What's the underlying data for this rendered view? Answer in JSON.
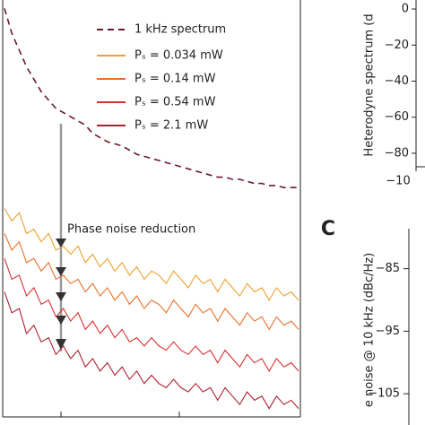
{
  "chart_data": [
    {
      "type": "line",
      "annotation": "Phase noise reduction",
      "xlim": [
        0,
        40
      ],
      "ylim": [
        0,
        100
      ],
      "x": [
        0,
        1,
        2,
        3,
        4,
        5,
        6,
        7,
        8,
        9,
        10,
        11,
        12,
        13,
        14,
        15,
        16,
        17,
        18,
        19,
        20,
        21,
        22,
        23,
        24,
        25,
        26,
        27,
        28,
        29,
        30,
        31,
        32,
        33,
        34,
        35,
        36,
        37,
        38,
        39,
        40
      ],
      "series": [
        {
          "name": "1 kHz spectrum",
          "color": "#6b1a2a",
          "linestyle": "dashed",
          "values": [
            98,
            92,
            88,
            84,
            81,
            78,
            76,
            74,
            73,
            72,
            71,
            70,
            68,
            67,
            66,
            65.5,
            65,
            64,
            63,
            62.5,
            62,
            61.5,
            61,
            60.5,
            60,
            59.5,
            59,
            58.5,
            58,
            57.5,
            57.5,
            57,
            57,
            56.5,
            56,
            56,
            55.5,
            55.5,
            55,
            55,
            55
          ]
        },
        {
          "name": "Pₛ = 0.034 mW",
          "color": "#f0a030",
          "linestyle": "solid",
          "values": [
            50,
            47,
            49,
            44,
            45,
            42,
            44,
            40,
            41,
            39,
            41,
            37,
            39,
            36,
            38,
            35,
            37,
            34,
            36,
            33,
            35,
            34,
            32,
            35,
            33,
            31,
            34,
            32,
            33,
            30,
            33,
            31,
            29,
            32,
            30,
            31,
            28,
            31,
            29,
            30,
            28
          ]
        },
        {
          "name": "Pₛ = 0.14 mW",
          "color": "#e8702a",
          "linestyle": "solid",
          "values": [
            44,
            40,
            42,
            37,
            38,
            35,
            37,
            33,
            34,
            32,
            33,
            30,
            32,
            29,
            31,
            28,
            30,
            27,
            29,
            26,
            28,
            27,
            25,
            28,
            26,
            24,
            27,
            25,
            26,
            23,
            26,
            24,
            22,
            25,
            23,
            24,
            21,
            24,
            22,
            23,
            21
          ]
        },
        {
          "name": "Pₛ = 0.54 mW",
          "color": "#d83030",
          "linestyle": "solid",
          "values": [
            38,
            33,
            34,
            29,
            31,
            27,
            28,
            24,
            26,
            23,
            25,
            21,
            23,
            20,
            22,
            19,
            21,
            18,
            19,
            17,
            19,
            17,
            16,
            18,
            16,
            15,
            17,
            15,
            16,
            13,
            16,
            14,
            12,
            15,
            13,
            14,
            11,
            14,
            12,
            13,
            11
          ]
        },
        {
          "name": "Pₛ = 2.1 mW",
          "color": "#b02030",
          "linestyle": "solid",
          "values": [
            30,
            25,
            26,
            20,
            22,
            18,
            19,
            15,
            17,
            14,
            16,
            12,
            14,
            11,
            13,
            10,
            12,
            9,
            11,
            8,
            10,
            8,
            7,
            9,
            7,
            6,
            8,
            6,
            7,
            4,
            7,
            5,
            3,
            6,
            4,
            5,
            2,
            5,
            3,
            4,
            2
          ]
        }
      ]
    },
    {
      "type": "line",
      "y_label": "Heterodyne spectrum (d",
      "ylim": [
        -87.5,
        5
      ],
      "yticks": [
        0,
        {
          "value": -20,
          "label": "−20"
        },
        {
          "value": -40,
          "label": "−40"
        },
        {
          "value": -60,
          "label": "−60"
        },
        {
          "value": -80,
          "label": "−80"
        }
      ],
      "xlim": [
        -10,
        10
      ],
      "xticks": [
        {
          "value": -10,
          "label": "−10"
        }
      ]
    },
    {
      "type": "scatter",
      "panel_label": "C",
      "y_label": "e noise @ 10 kHz (dBc/Hz)",
      "ylim": [
        -110,
        -78.6
      ],
      "yticks": [
        {
          "value": -85,
          "label": "−85"
        },
        {
          "value": -95,
          "label": "−95"
        },
        {
          "value": -105,
          "label": "−105"
        }
      ]
    }
  ]
}
